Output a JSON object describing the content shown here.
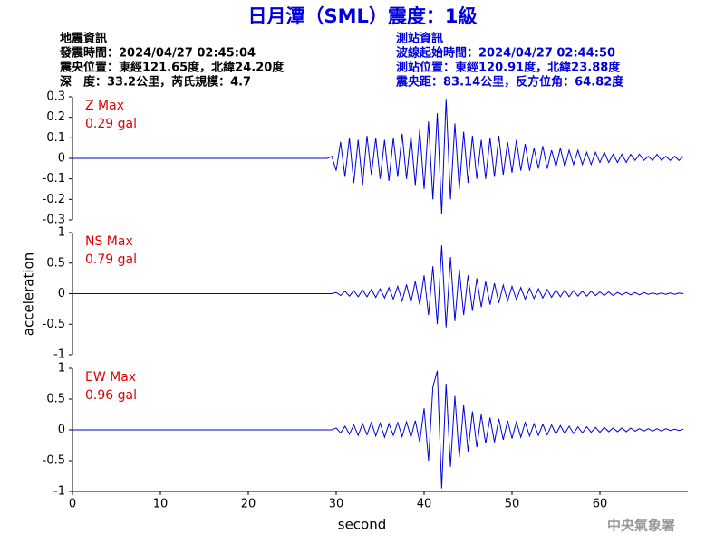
{
  "header": {
    "title": "日月潭（SML）震度：1級",
    "left": [
      "地震資訊",
      "發震時間：2024/04/27 02:45:04",
      "震央位置：東經121.65度，北緯24.20度",
      "深　度：33.2公里，芮氏規模：4.7"
    ],
    "right": [
      "測站資訊",
      "波線起始時間：2024/04/27 02:44:50",
      "測站位置：東經120.91度，北緯23.88度",
      "震央距：83.14公里，反方位角：64.82度"
    ]
  },
  "footer": "中央氣象署",
  "chart_data": [
    {
      "type": "line",
      "annotations": [
        "Z Max",
        "0.29 gal"
      ],
      "x": [
        0,
        5,
        10,
        15,
        20,
        25,
        29,
        29.5,
        30,
        30.5,
        31,
        31.5,
        32,
        32.5,
        33,
        33.5,
        34,
        34.5,
        35,
        35.5,
        36,
        36.5,
        37,
        37.5,
        38,
        38.5,
        39,
        39.5,
        40,
        40.5,
        41,
        41.5,
        42,
        42.5,
        43,
        43.5,
        44,
        44.5,
        45,
        45.5,
        46,
        46.5,
        47,
        47.5,
        48,
        48.5,
        49,
        49.5,
        50,
        50.5,
        51,
        51.5,
        52,
        52.5,
        53,
        53.5,
        54,
        54.5,
        55,
        55.5,
        56,
        56.5,
        57,
        57.5,
        58,
        58.5,
        59,
        59.5,
        60,
        60.5,
        61,
        61.5,
        62,
        62.5,
        63,
        63.5,
        64,
        64.5,
        65,
        65.5,
        66,
        66.5,
        67,
        67.5,
        68,
        68.5,
        69,
        69.5
      ],
      "series": [
        {
          "color": "#0000dd",
          "values": [
            0,
            0,
            0,
            0,
            0,
            0,
            0,
            0.01,
            -0.06,
            0.08,
            -0.09,
            0.1,
            -0.12,
            0.09,
            -0.13,
            0.11,
            -0.08,
            0.1,
            -0.1,
            0.09,
            -0.11,
            0.1,
            -0.09,
            0.12,
            -0.1,
            0.11,
            -0.13,
            0.14,
            -0.15,
            0.18,
            -0.2,
            0.22,
            -0.27,
            0.29,
            -0.2,
            0.17,
            -0.15,
            0.13,
            -0.12,
            0.11,
            -0.1,
            0.09,
            -0.1,
            0.1,
            -0.09,
            0.11,
            -0.08,
            0.08,
            -0.07,
            0.09,
            -0.06,
            0.07,
            -0.06,
            0.05,
            -0.05,
            0.06,
            -0.05,
            0.04,
            -0.04,
            0.05,
            -0.04,
            0.04,
            -0.03,
            0.04,
            -0.03,
            0.03,
            -0.03,
            0.03,
            -0.02,
            0.03,
            -0.02,
            0.02,
            -0.02,
            0.02,
            -0.02,
            0.02,
            -0.01,
            0.02,
            -0.01,
            0.01,
            -0.01,
            0.02,
            -0.01,
            0.01,
            -0.01,
            0.01,
            -0.01,
            0.01
          ]
        }
      ],
      "xlim": [
        0,
        70
      ],
      "ylim": [
        -0.3,
        0.3
      ],
      "yticks": [
        0.3,
        0.2,
        0.1,
        0,
        -0.1,
        -0.2,
        -0.3
      ]
    },
    {
      "type": "line",
      "annotations": [
        "NS Max",
        "0.79 gal"
      ],
      "ylabel": "acceleration",
      "x": [
        0,
        5,
        10,
        15,
        20,
        25,
        29,
        29.5,
        30,
        30.5,
        31,
        31.5,
        32,
        32.5,
        33,
        33.5,
        34,
        34.5,
        35,
        35.5,
        36,
        36.5,
        37,
        37.5,
        38,
        38.5,
        39,
        39.5,
        40,
        40.5,
        41,
        41.5,
        42,
        42.5,
        43,
        43.5,
        44,
        44.5,
        45,
        45.5,
        46,
        46.5,
        47,
        47.5,
        48,
        48.5,
        49,
        49.5,
        50,
        50.5,
        51,
        51.5,
        52,
        52.5,
        53,
        53.5,
        54,
        54.5,
        55,
        55.5,
        56,
        56.5,
        57,
        57.5,
        58,
        58.5,
        59,
        59.5,
        60,
        60.5,
        61,
        61.5,
        62,
        62.5,
        63,
        63.5,
        64,
        64.5,
        65,
        65.5,
        66,
        66.5,
        67,
        67.5,
        68,
        68.5,
        69,
        69.5
      ],
      "series": [
        {
          "color": "#0000dd",
          "values": [
            0,
            0,
            0,
            0,
            0,
            0,
            0,
            0,
            0.02,
            -0.03,
            0.04,
            -0.04,
            0.05,
            -0.05,
            0.06,
            -0.05,
            0.07,
            -0.06,
            0.08,
            -0.07,
            0.1,
            -0.09,
            0.12,
            -0.12,
            0.15,
            -0.14,
            0.2,
            -0.18,
            0.3,
            -0.35,
            0.45,
            -0.5,
            0.79,
            -0.55,
            0.6,
            -0.45,
            0.4,
            -0.35,
            0.3,
            -0.28,
            0.25,
            -0.22,
            0.2,
            -0.18,
            0.17,
            -0.15,
            0.14,
            -0.12,
            0.12,
            -0.1,
            0.1,
            -0.09,
            0.09,
            -0.08,
            0.08,
            -0.07,
            0.07,
            -0.06,
            0.06,
            -0.05,
            0.06,
            -0.05,
            0.05,
            -0.04,
            0.04,
            -0.04,
            0.04,
            -0.03,
            0.03,
            -0.03,
            0.03,
            -0.03,
            0.02,
            -0.02,
            0.02,
            -0.02,
            0.02,
            -0.02,
            0.02,
            -0.01,
            0.01,
            -0.01,
            0.01,
            -0.01,
            0.01,
            -0.01,
            0.01,
            0
          ]
        }
      ],
      "xlim": [
        0,
        70
      ],
      "ylim": [
        -1,
        1
      ],
      "yticks": [
        1,
        0.5,
        0,
        -0.5,
        -1
      ]
    },
    {
      "type": "line",
      "annotations": [
        "EW Max",
        "0.96 gal"
      ],
      "xlabel": "second",
      "x": [
        0,
        5,
        10,
        15,
        20,
        25,
        29,
        29.5,
        30,
        30.5,
        31,
        31.5,
        32,
        32.5,
        33,
        33.5,
        34,
        34.5,
        35,
        35.5,
        36,
        36.5,
        37,
        37.5,
        38,
        38.5,
        39,
        39.5,
        40,
        40.5,
        41,
        41.5,
        42,
        42.5,
        43,
        43.5,
        44,
        44.5,
        45,
        45.5,
        46,
        46.5,
        47,
        47.5,
        48,
        48.5,
        49,
        49.5,
        50,
        50.5,
        51,
        51.5,
        52,
        52.5,
        53,
        53.5,
        54,
        54.5,
        55,
        55.5,
        56,
        56.5,
        57,
        57.5,
        58,
        58.5,
        59,
        59.5,
        60,
        60.5,
        61,
        61.5,
        62,
        62.5,
        63,
        63.5,
        64,
        64.5,
        65,
        65.5,
        66,
        66.5,
        67,
        67.5,
        68,
        68.5,
        69,
        69.5
      ],
      "series": [
        {
          "color": "#0000dd",
          "values": [
            0,
            0,
            0,
            0,
            0,
            0,
            0,
            0,
            0.03,
            -0.05,
            0.06,
            -0.07,
            0.08,
            -0.09,
            0.1,
            -0.08,
            0.12,
            -0.1,
            0.11,
            -0.12,
            0.1,
            -0.09,
            0.12,
            -0.11,
            0.13,
            -0.12,
            0.15,
            -0.2,
            0.35,
            -0.5,
            0.7,
            0.96,
            -0.95,
            0.75,
            -0.6,
            0.55,
            -0.45,
            0.4,
            -0.35,
            0.3,
            -0.28,
            0.25,
            -0.22,
            0.2,
            -0.2,
            0.18,
            -0.16,
            0.15,
            -0.14,
            0.13,
            -0.12,
            0.12,
            -0.1,
            0.1,
            -0.09,
            0.09,
            -0.08,
            0.08,
            -0.07,
            0.07,
            -0.06,
            0.06,
            -0.06,
            0.05,
            -0.05,
            0.05,
            -0.04,
            0.04,
            -0.04,
            0.04,
            -0.03,
            0.03,
            -0.03,
            0.03,
            -0.03,
            0.03,
            -0.02,
            0.02,
            -0.02,
            0.02,
            -0.02,
            0.02,
            -0.02,
            0.02,
            -0.01,
            0.01,
            -0.01,
            0.01
          ]
        }
      ],
      "xlim": [
        0,
        70
      ],
      "ylim": [
        -1,
        1
      ],
      "yticks": [
        1,
        0.5,
        0,
        -0.5,
        -1
      ],
      "xticks": [
        0,
        10,
        20,
        30,
        40,
        50,
        60
      ]
    }
  ]
}
